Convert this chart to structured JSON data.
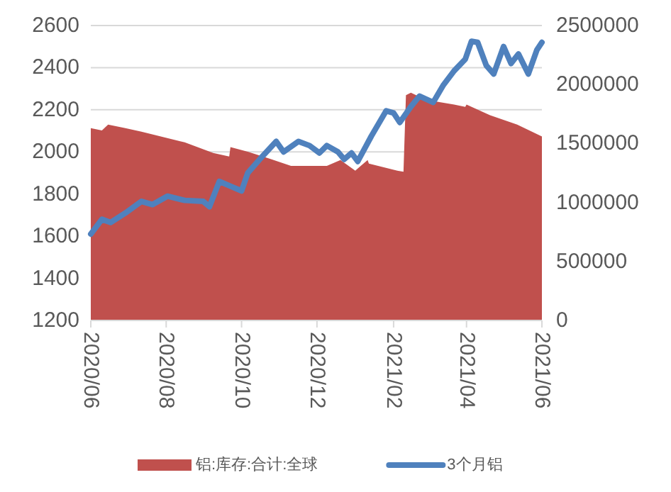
{
  "chart_data": {
    "type": "line",
    "xlim": [
      "2020-06-01",
      "2021-06-01"
    ],
    "xticks": [
      {
        "value": "2020-06-01",
        "label": "2020/06"
      },
      {
        "value": "2020-08-01",
        "label": "2020/08"
      },
      {
        "value": "2020-10-01",
        "label": "2020/10"
      },
      {
        "value": "2020-12-01",
        "label": "2020/12"
      },
      {
        "value": "2021-02-01",
        "label": "2021/02"
      },
      {
        "value": "2021-04-01",
        "label": "2021/04"
      },
      {
        "value": "2021-06-01",
        "label": "2021/06"
      }
    ],
    "ylim": [
      1200,
      2600
    ],
    "yticks": [
      1200,
      1400,
      1600,
      1800,
      2000,
      2200,
      2400,
      2600
    ],
    "y2lim": [
      0,
      2500000
    ],
    "y2ticks": [
      0,
      500000,
      1000000,
      1500000,
      2000000,
      2500000
    ],
    "grid": "y",
    "legend": "bottom",
    "series": [
      {
        "name": "铝:库存:合计:全球",
        "type": "area",
        "axis": "y2",
        "color": "#c0504d",
        "x": [
          "2020-06-01",
          "2020-06-10",
          "2020-06-15",
          "2020-06-29",
          "2020-07-12",
          "2020-08-16",
          "2020-09-08",
          "2020-09-21",
          "2020-09-22",
          "2020-10-06",
          "2020-10-24",
          "2020-11-10",
          "2020-12-09",
          "2020-12-20",
          "2021-01-01",
          "2021-01-11",
          "2021-01-12",
          "2021-02-04",
          "2021-02-09",
          "2021-02-11",
          "2021-02-15",
          "2021-02-27",
          "2021-03-22",
          "2021-03-31",
          "2021-04-01",
          "2021-04-20",
          "2021-05-12",
          "2021-06-01"
        ],
        "values": [
          1630000,
          1610000,
          1660000,
          1630000,
          1600000,
          1510000,
          1420000,
          1390000,
          1470000,
          1430000,
          1370000,
          1310000,
          1310000,
          1360000,
          1270000,
          1360000,
          1330000,
          1270000,
          1260000,
          1910000,
          1930000,
          1870000,
          1830000,
          1810000,
          1830000,
          1740000,
          1660000,
          1560000
        ]
      },
      {
        "name": "3个月铝",
        "type": "line",
        "color": "#4f81bd",
        "x": [
          "2020-06-01",
          "2020-06-10",
          "2020-06-17",
          "2020-06-29",
          "2020-07-12",
          "2020-07-21",
          "2020-08-02",
          "2020-08-16",
          "2020-08-31",
          "2020-09-05",
          "2020-09-13",
          "2020-09-23",
          "2020-10-01",
          "2020-10-06",
          "2020-10-18",
          "2020-10-29",
          "2020-11-04",
          "2020-11-16",
          "2020-11-25",
          "2020-12-03",
          "2020-12-09",
          "2020-12-18",
          "2020-12-23",
          "2020-12-29",
          "2021-01-03",
          "2021-01-14",
          "2021-01-26",
          "2021-02-01",
          "2021-02-06",
          "2021-02-15",
          "2021-02-22",
          "2021-03-05",
          "2021-03-13",
          "2021-03-22",
          "2021-03-31",
          "2021-04-05",
          "2021-04-10",
          "2021-04-17",
          "2021-04-23",
          "2021-05-01",
          "2021-05-07",
          "2021-05-13",
          "2021-05-21",
          "2021-05-28",
          "2021-06-01"
        ],
        "values": [
          1610,
          1680,
          1665,
          1710,
          1765,
          1750,
          1790,
          1770,
          1765,
          1740,
          1860,
          1835,
          1815,
          1900,
          1980,
          2050,
          2000,
          2050,
          2030,
          1995,
          2030,
          2000,
          1965,
          1995,
          1955,
          2075,
          2195,
          2185,
          2140,
          2215,
          2265,
          2235,
          2315,
          2385,
          2440,
          2525,
          2520,
          2410,
          2370,
          2500,
          2420,
          2465,
          2370,
          2485,
          2520
        ]
      }
    ]
  }
}
